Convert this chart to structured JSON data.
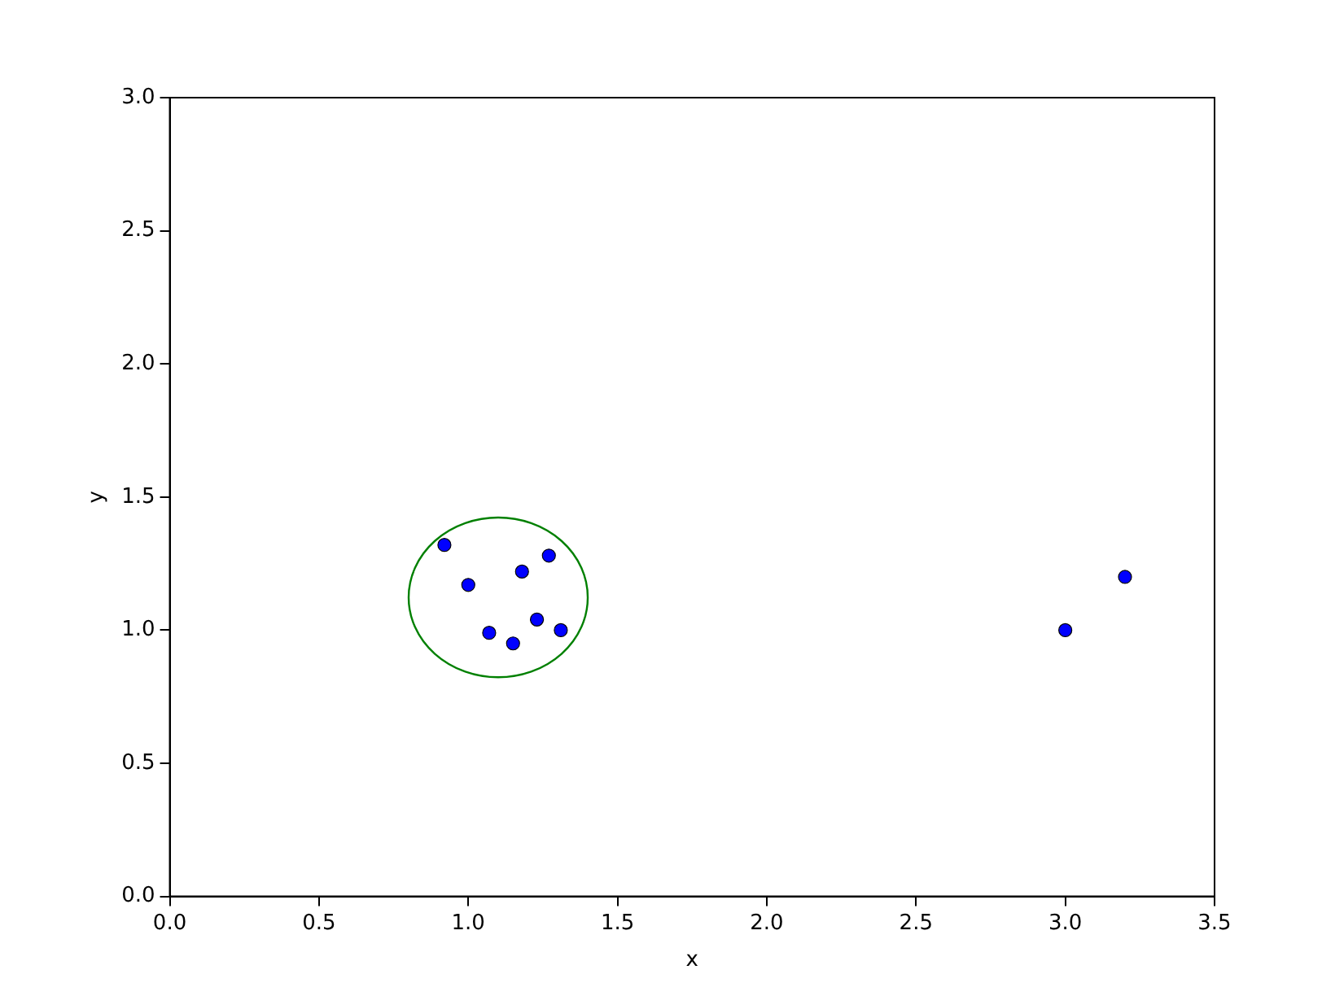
{
  "chart_data": {
    "type": "scatter",
    "xlabel": "x",
    "ylabel": "y",
    "xlim": [
      0,
      3.5
    ],
    "ylim": [
      0,
      3
    ],
    "xticks": [
      {
        "value": 0,
        "label": "0.0"
      },
      0.5,
      {
        "value": 1,
        "label": "1.0"
      },
      1.5,
      {
        "value": 2,
        "label": "2.0"
      },
      2.5,
      {
        "value": 3,
        "label": "3.0"
      },
      3.5
    ],
    "yticks": [
      {
        "value": 0,
        "label": "0.0"
      },
      0.5,
      {
        "value": 1,
        "label": "1.0"
      },
      1.5,
      {
        "value": 2,
        "label": "2.0"
      },
      2.5,
      {
        "value": 3,
        "label": "3.0"
      }
    ],
    "grid": false,
    "legend": false,
    "series": [
      {
        "color": "#0000ff",
        "marker": "circle",
        "x": [
          0.92,
          1.0,
          1.18,
          1.27,
          1.07,
          1.23,
          1.15,
          1.31,
          3.0,
          3.2
        ],
        "values": [
          1.32,
          1.17,
          1.22,
          1.28,
          0.99,
          1.04,
          0.95,
          1.0,
          1.0,
          1.2
        ]
      }
    ]
  }
}
